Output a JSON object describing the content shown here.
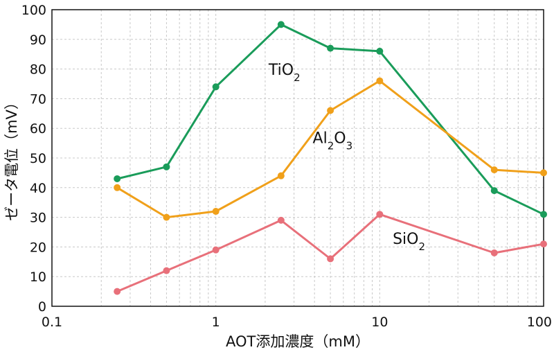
{
  "chart_data": {
    "type": "line",
    "xlabel": "AOT添加濃度（mM）",
    "ylabel": "ゼータ電位（mV）",
    "xscale": "log",
    "xlim": [
      0.1,
      100
    ],
    "ylim": [
      0,
      100
    ],
    "grid": true,
    "x_ticks": [
      "0.1",
      "1",
      "10",
      "100"
    ],
    "y_ticks": [
      "0",
      "10",
      "20",
      "30",
      "40",
      "50",
      "60",
      "70",
      "80",
      "90",
      "100"
    ],
    "x": [
      0.25,
      0.5,
      1,
      2.5,
      5,
      10,
      50,
      100
    ],
    "series": [
      {
        "name": "TiO",
        "sub": "2",
        "color": "#1a9c5a",
        "values": [
          43,
          47,
          74,
          95,
          87,
          86,
          39,
          31
        ]
      },
      {
        "name": "Al",
        "sub": "2",
        "name2": "O",
        "sub2": "3",
        "color": "#f0a01a",
        "values": [
          40,
          30,
          32,
          44,
          66,
          76,
          46,
          45
        ]
      },
      {
        "name": "SiO",
        "sub": "2",
        "color": "#e8707a",
        "values": [
          5,
          12,
          19,
          29,
          16,
          31,
          18,
          21
        ]
      }
    ]
  }
}
